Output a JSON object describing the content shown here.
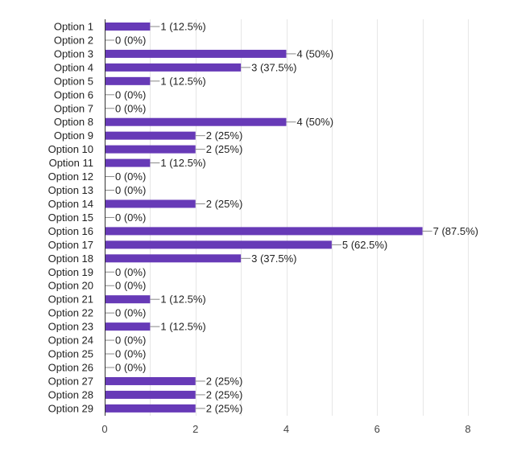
{
  "chart_data": {
    "type": "bar",
    "orientation": "horizontal",
    "categories": [
      "Option 1",
      "Option 2",
      "Option 3",
      "Option 4",
      "Option 5",
      "Option 6",
      "Option 7",
      "Option 8",
      "Option 9",
      "Option 10",
      "Option 11",
      "Option 12",
      "Option 13",
      "Option 14",
      "Option 15",
      "Option 16",
      "Option 17",
      "Option 18",
      "Option 19",
      "Option 20",
      "Option 21",
      "Option 22",
      "Option 23",
      "Option 24",
      "Option 25",
      "Option 26",
      "Option 27",
      "Option 28",
      "Option 29"
    ],
    "values": [
      1,
      0,
      4,
      3,
      1,
      0,
      0,
      4,
      2,
      2,
      1,
      0,
      0,
      2,
      0,
      7,
      5,
      3,
      0,
      0,
      1,
      0,
      1,
      0,
      0,
      0,
      2,
      2,
      2
    ],
    "data_labels": [
      "1 (12.5%)",
      "0 (0%)",
      "4 (50%)",
      "3 (37.5%)",
      "1 (12.5%)",
      "0 (0%)",
      "0 (0%)",
      "4 (50%)",
      "2 (25%)",
      "2 (25%)",
      "1 (12.5%)",
      "0 (0%)",
      "0 (0%)",
      "2 (25%)",
      "0 (0%)",
      "7 (87.5%)",
      "5 (62.5%)",
      "3 (37.5%)",
      "0 (0%)",
      "0 (0%)",
      "1 (12.5%)",
      "0 (0%)",
      "1 (12.5%)",
      "0 (0%)",
      "0 (0%)",
      "0 (0%)",
      "2 (25%)",
      "2 (25%)",
      "2 (25%)"
    ],
    "xlim": [
      0,
      8
    ],
    "x_ticks": [
      "0",
      "2",
      "4",
      "6",
      "8"
    ],
    "grid": true,
    "colors": {
      "bar": "#673ab7",
      "grid": "#e6e6e6",
      "axis": "#333333",
      "leader": "#888888"
    },
    "title": "",
    "xlabel": "",
    "ylabel": ""
  }
}
